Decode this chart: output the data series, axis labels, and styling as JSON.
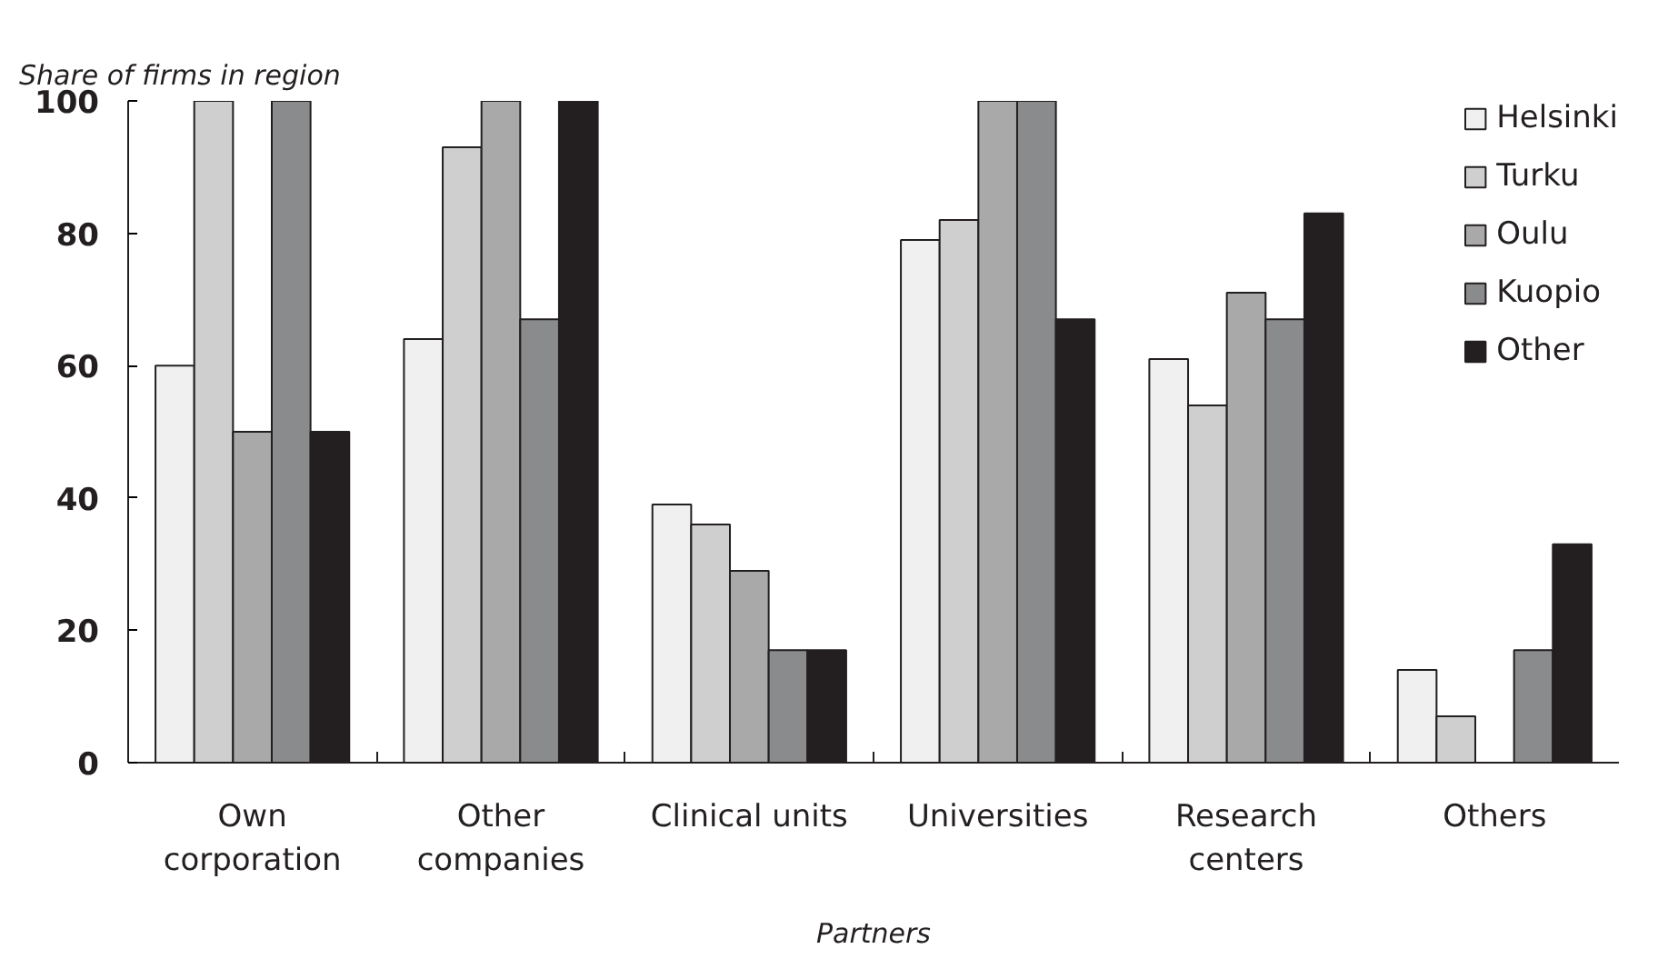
{
  "chart_data": {
    "type": "bar",
    "ylabel": "Share of firms in region",
    "xlabel": "Partners",
    "categories": [
      "Own corporation",
      "Other companies",
      "Clinical units",
      "Universities",
      "Research centers",
      "Others"
    ],
    "series": [
      {
        "name": "Helsinki",
        "color": "#eff0ef",
        "values": [
          60,
          64,
          39,
          79,
          61,
          14
        ]
      },
      {
        "name": "Turku",
        "color": "#cfcfcf",
        "values": [
          100,
          93,
          36,
          82,
          54,
          7
        ]
      },
      {
        "name": "Oulu",
        "color": "#a8a9a8",
        "values": [
          50,
          100,
          29,
          100,
          71,
          null
        ]
      },
      {
        "name": "Kuopio",
        "color": "#8a8b8c",
        "values": [
          100,
          67,
          17,
          100,
          67,
          17
        ]
      },
      {
        "name": "Other",
        "color": "#231f20",
        "values": [
          50,
          100,
          17,
          67,
          83,
          33
        ]
      }
    ],
    "ylim": [
      0,
      100
    ],
    "yticks": [
      0,
      20,
      40,
      60,
      80,
      100
    ],
    "grid": false,
    "legend": "top right"
  }
}
